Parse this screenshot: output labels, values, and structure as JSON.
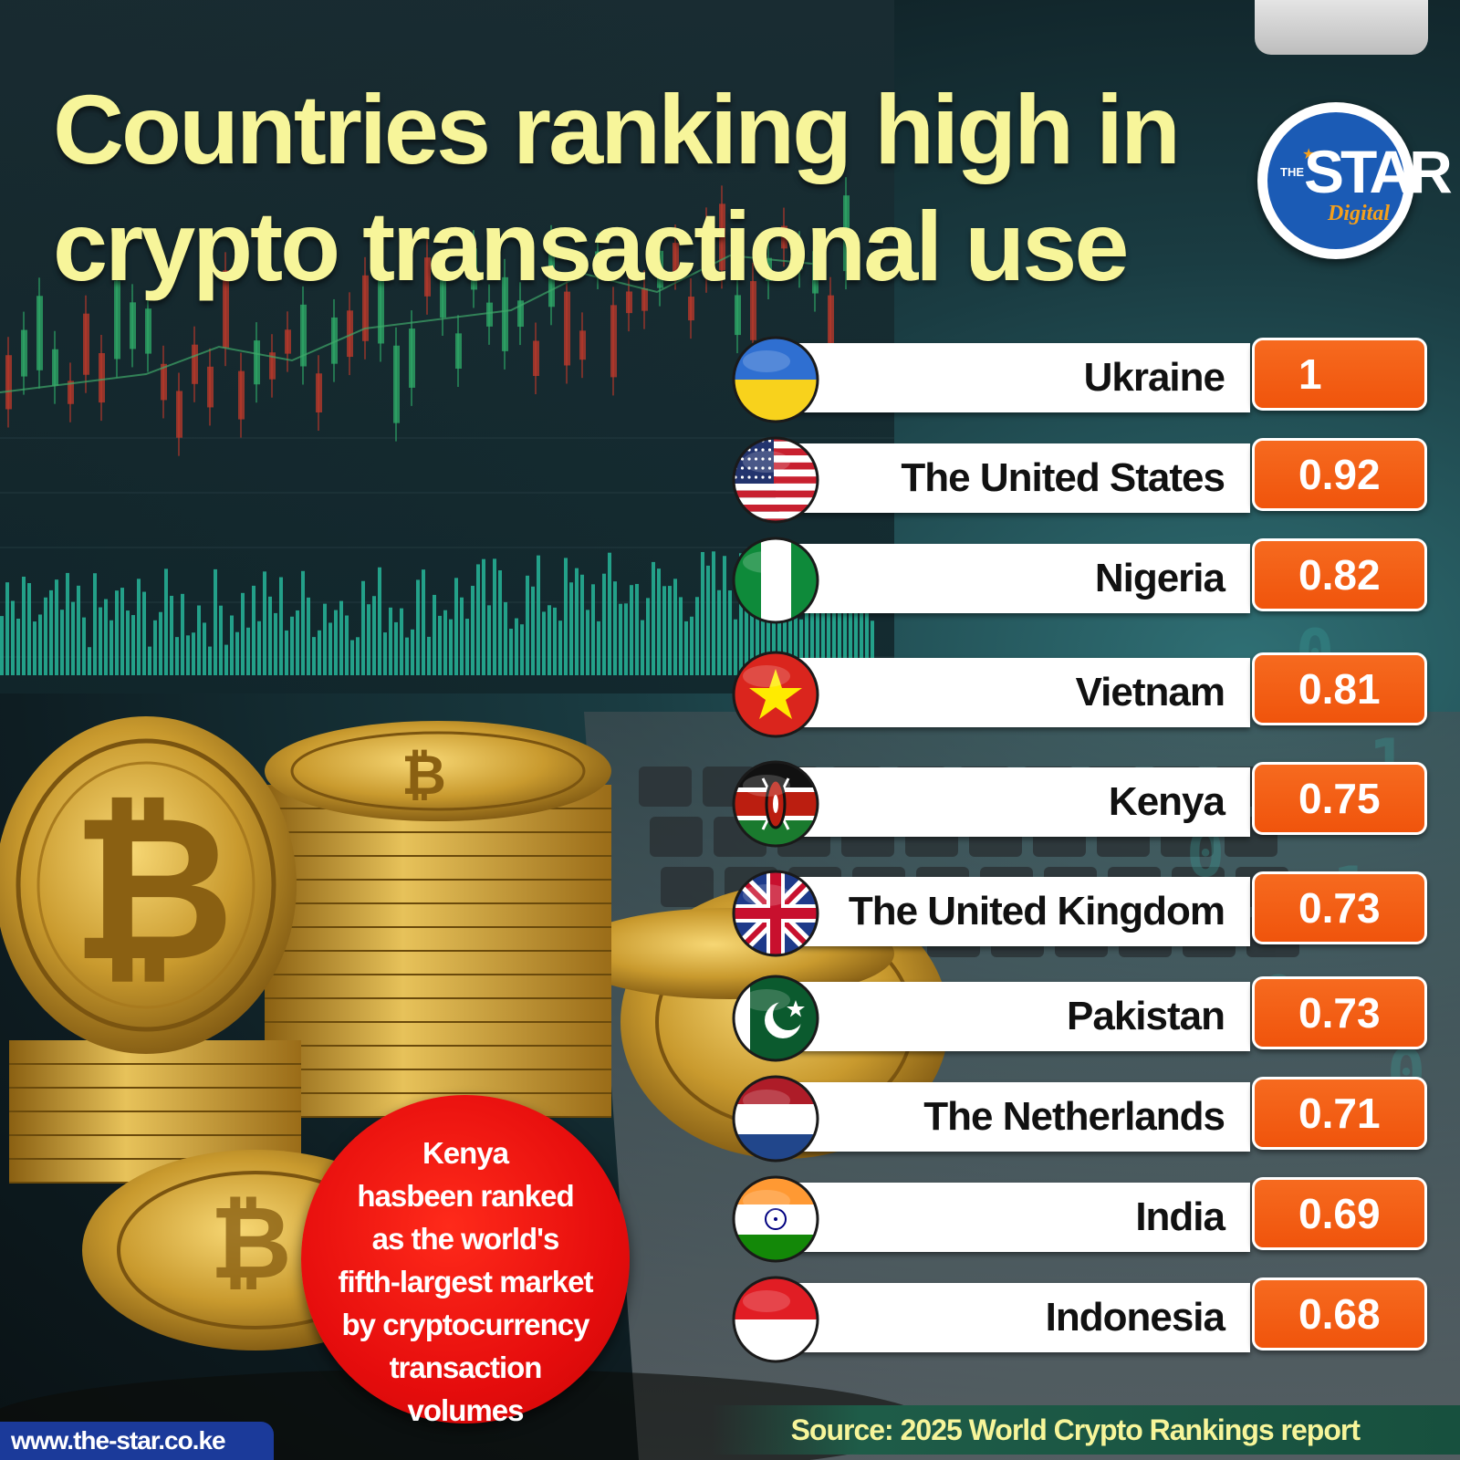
{
  "header": {
    "title_line1": "Countries ranking high in",
    "title_line2": "crypto transactional use"
  },
  "logo": {
    "prefix": "THE",
    "name": "STAR",
    "suffix": "Digital"
  },
  "colors": {
    "title": "#f7f59a",
    "value_box": "#f25d12",
    "note_circle": "#e60d0d",
    "logo_blue": "#1b5bb5",
    "logo_orange": "#f6a01a"
  },
  "chart_data": {
    "type": "table",
    "rows": [
      {
        "country": "Ukraine",
        "value": "1",
        "flag": "ukraine-flag-icon"
      },
      {
        "country": "The United States",
        "value": "0.92",
        "flag": "usa-flag-icon"
      },
      {
        "country": "Nigeria",
        "value": "0.82",
        "flag": "nigeria-flag-icon"
      },
      {
        "country": "Vietnam",
        "value": "0.81",
        "flag": "vietnam-flag-icon"
      },
      {
        "country": "Kenya",
        "value": "0.75",
        "flag": "kenya-flag-icon"
      },
      {
        "country": "The United Kingdom",
        "value": "0.73",
        "flag": "uk-flag-icon"
      },
      {
        "country": "Pakistan",
        "value": "0.73",
        "flag": "pakistan-flag-icon"
      },
      {
        "country": "The Netherlands",
        "value": "0.71",
        "flag": "netherlands-flag-icon"
      },
      {
        "country": "India",
        "value": "0.69",
        "flag": "india-flag-icon"
      },
      {
        "country": "Indonesia",
        "value": "0.68",
        "flag": "indonesia-flag-icon"
      }
    ]
  },
  "note": {
    "lines": [
      "Kenya",
      "hasbeen ranked",
      "as the world's",
      "fifth-largest market",
      "by cryptocurrency",
      "transaction",
      "volumes"
    ]
  },
  "footer": {
    "source": "Source: 2025 World Crypto Rankings report",
    "url": "www.the-star.co.ke"
  }
}
